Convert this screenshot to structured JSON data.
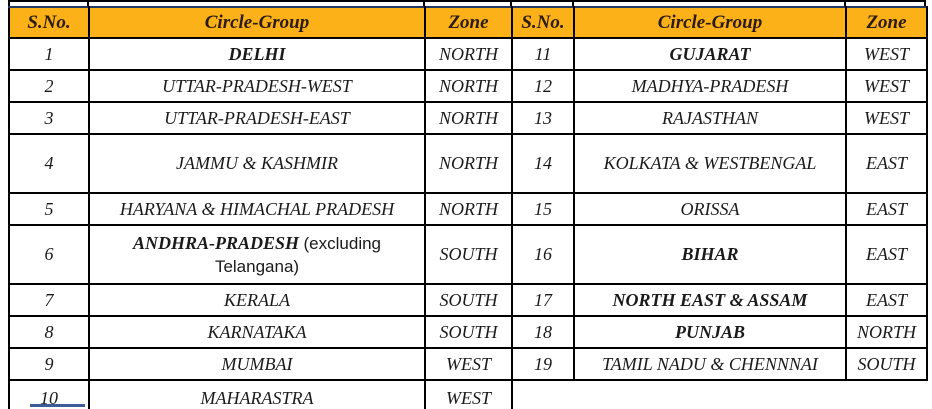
{
  "artifacts": {
    "top_line_color": "#000000",
    "bottom_fragment_color": "#3E5C9A"
  },
  "table": {
    "header": {
      "sno": "S.No.",
      "circle": "Circle-Group",
      "zone": "Zone",
      "background": "#FBB117",
      "text_color": "#2B1B10",
      "top_border_color": "#1F3864"
    },
    "rows": [
      {
        "left": {
          "sno": "1",
          "circle": "DELHI",
          "zone": "NORTH"
        },
        "right": {
          "sno": "11",
          "circle": "GUJARAT",
          "zone": "WEST"
        }
      },
      {
        "left": {
          "sno": "2",
          "circle": "UTTAR-PRADESH-WEST",
          "zone": "NORTH"
        },
        "right": {
          "sno": "12",
          "circle": "MADHYA-PRADESH",
          "zone": "WEST"
        }
      },
      {
        "left": {
          "sno": "3",
          "circle": "UTTAR-PRADESH-EAST",
          "zone": "NORTH"
        },
        "right": {
          "sno": "13",
          "circle": "RAJASTHAN",
          "zone": "WEST"
        }
      },
      {
        "left": {
          "sno": "4",
          "circle": "JAMMU & KASHMIR",
          "zone": "NORTH"
        },
        "right": {
          "sno": "14",
          "circle": "KOLKATA & WESTBENGAL",
          "zone": "EAST"
        }
      },
      {
        "left": {
          "sno": "5",
          "circle": "HARYANA & HIMACHAL PRADESH",
          "zone": "NORTH"
        },
        "right": {
          "sno": "15",
          "circle": "ORISSA",
          "zone": "EAST"
        }
      },
      {
        "left": {
          "sno": "6",
          "circle": "ANDHRA-PRADESH",
          "circle_note": "(excluding Telangana)",
          "zone": "SOUTH"
        },
        "right": {
          "sno": "16",
          "circle": "BIHAR",
          "zone": "EAST"
        }
      },
      {
        "left": {
          "sno": "7",
          "circle": "KERALA",
          "zone": "SOUTH"
        },
        "right": {
          "sno": "17",
          "circle": "NORTH EAST & ASSAM",
          "zone": "EAST"
        }
      },
      {
        "left": {
          "sno": "8",
          "circle": "KARNATAKA",
          "zone": "SOUTH"
        },
        "right": {
          "sno": "18",
          "circle": "PUNJAB",
          "zone": "NORTH"
        }
      },
      {
        "left": {
          "sno": "9",
          "circle": "MUMBAI",
          "zone": "WEST"
        },
        "right": {
          "sno": "19",
          "circle": "TAMIL NADU & CHENNNAI",
          "zone": "SOUTH"
        }
      },
      {
        "left": {
          "sno": "10",
          "circle": "MAHARASTRA",
          "zone": "WEST"
        },
        "right": null
      }
    ]
  }
}
